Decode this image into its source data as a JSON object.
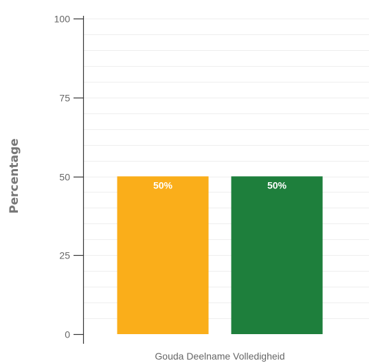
{
  "chart_data": {
    "type": "bar",
    "title": "",
    "xlabel": "",
    "ylabel": "Percentage",
    "categories": [
      "Gouda Deelname Volledigheid"
    ],
    "series": [
      {
        "values": [
          50
        ],
        "data_labels": [
          "50%"
        ],
        "color": "#FAAE1A"
      },
      {
        "values": [
          50
        ],
        "data_labels": [
          "50%"
        ],
        "color": "#1E7F3C"
      }
    ],
    "ylim": [
      0,
      100
    ],
    "yticks": [
      0,
      25,
      50,
      75,
      100
    ],
    "ytick_labels": [
      "0",
      "25",
      "50",
      "75",
      "100"
    ],
    "minor_grid_step": 5,
    "grid": true,
    "legend": "none"
  },
  "colors": {
    "axis": "#333333",
    "grid": "#eeeeee",
    "tick_text": "#666666",
    "ylabel_text": "#777777",
    "data_label_text": "#ffffff"
  }
}
